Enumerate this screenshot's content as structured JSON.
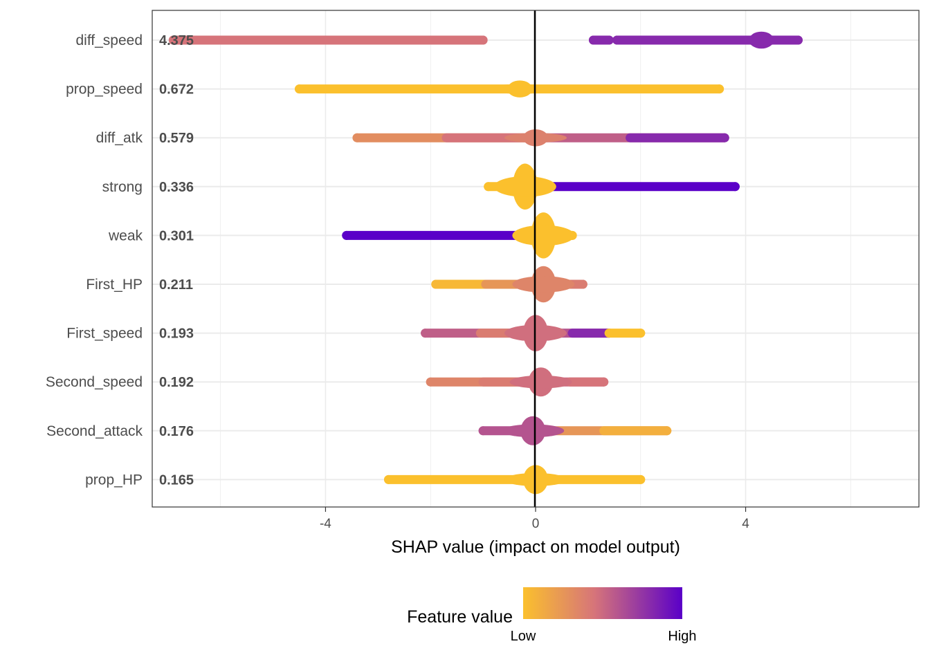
{
  "chart_data": {
    "type": "scatter",
    "subtype": "shap-beeswarm-summary",
    "title": "",
    "xlabel": "SHAP value (impact on model output)",
    "ylabel": "",
    "xlim": [
      -7.3,
      7.3
    ],
    "x_ticks": [
      -4,
      0,
      4
    ],
    "x_tick_labels": [
      "-4",
      "0",
      "4"
    ],
    "grid": true,
    "zero_line": true,
    "features": [
      {
        "name": "diff_speed",
        "mean_abs_shap": "4.375",
        "segments": [
          {
            "from": -6.9,
            "to": -1.0,
            "c0": 0.45,
            "c1": 0.45
          },
          {
            "from": 1.1,
            "to": 1.4,
            "c0": 0.8,
            "c1": 0.8
          },
          {
            "from": 1.55,
            "to": 5.0,
            "c0": 0.8,
            "c1": 0.8
          }
        ],
        "bulge_at": 4.3,
        "bulge_h": 0.35
      },
      {
        "name": "prop_speed",
        "mean_abs_shap": "0.672",
        "segments": [
          {
            "from": -4.5,
            "to": 3.5,
            "c0": 0.0,
            "c1": 0.0
          }
        ],
        "bulge_at": -0.3,
        "bulge_h": 0.35
      },
      {
        "name": "diff_atk",
        "mean_abs_shap": "0.579",
        "segments": [
          {
            "from": -3.4,
            "to": 0.0,
            "c0": 0.3,
            "c1": 0.45
          },
          {
            "from": 0.0,
            "to": 3.6,
            "c0": 0.55,
            "c1": 0.8
          }
        ],
        "bulge_at": 0.0,
        "bulge_h": 0.35
      },
      {
        "name": "strong",
        "mean_abs_shap": "0.336",
        "segments": [
          {
            "from": -0.9,
            "to": 0.0,
            "c0": 0.0,
            "c1": 0.0
          },
          {
            "from": 0.1,
            "to": 3.8,
            "c0": 1.0,
            "c1": 1.0
          }
        ],
        "bulge_at": -0.2,
        "bulge_h": 0.95
      },
      {
        "name": "weak",
        "mean_abs_shap": "0.301",
        "segments": [
          {
            "from": -3.6,
            "to": -0.1,
            "c0": 1.0,
            "c1": 1.0
          },
          {
            "from": -0.2,
            "to": 0.7,
            "c0": 0.0,
            "c1": 0.0
          }
        ],
        "bulge_at": 0.15,
        "bulge_h": 0.95
      },
      {
        "name": "First_HP",
        "mean_abs_shap": "0.211",
        "segments": [
          {
            "from": -1.9,
            "to": 0.0,
            "c0": 0.05,
            "c1": 0.25
          },
          {
            "from": 0.0,
            "to": 0.9,
            "c0": 0.3,
            "c1": 0.4
          }
        ],
        "bulge_at": 0.15,
        "bulge_h": 0.75
      },
      {
        "name": "First_speed",
        "mean_abs_shap": "0.193",
        "segments": [
          {
            "from": -2.1,
            "to": 0.0,
            "c0": 0.55,
            "c1": 0.4
          },
          {
            "from": 0.0,
            "to": 1.4,
            "c0": 0.6,
            "c1": 0.8
          },
          {
            "from": 1.4,
            "to": 2.0,
            "c0": 0.0,
            "c1": 0.0
          }
        ],
        "bulge_at": 0.0,
        "bulge_h": 0.75
      },
      {
        "name": "Second_speed",
        "mean_abs_shap": "0.192",
        "segments": [
          {
            "from": -2.0,
            "to": 0.0,
            "c0": 0.35,
            "c1": 0.4
          },
          {
            "from": 0.0,
            "to": 1.3,
            "c0": 0.5,
            "c1": 0.45
          }
        ],
        "bulge_at": 0.1,
        "bulge_h": 0.6
      },
      {
        "name": "Second_attack",
        "mean_abs_shap": "0.176",
        "segments": [
          {
            "from": -1.0,
            "to": 0.1,
            "c0": 0.6,
            "c1": 0.6
          },
          {
            "from": 0.1,
            "to": 2.5,
            "c0": 0.25,
            "c1": 0.1
          }
        ],
        "bulge_at": -0.05,
        "bulge_h": 0.6
      },
      {
        "name": "prop_HP",
        "mean_abs_shap": "0.165",
        "segments": [
          {
            "from": -2.8,
            "to": 2.0,
            "c0": 0.0,
            "c1": 0.0
          }
        ],
        "bulge_at": 0.0,
        "bulge_h": 0.6
      }
    ],
    "legend": {
      "title": "Feature value",
      "low_label": "Low",
      "high_label": "High",
      "placement": "bottom",
      "low_color": "#FBC02D",
      "mid_color": "#D6747A",
      "high_color": "#5A00C8"
    }
  }
}
